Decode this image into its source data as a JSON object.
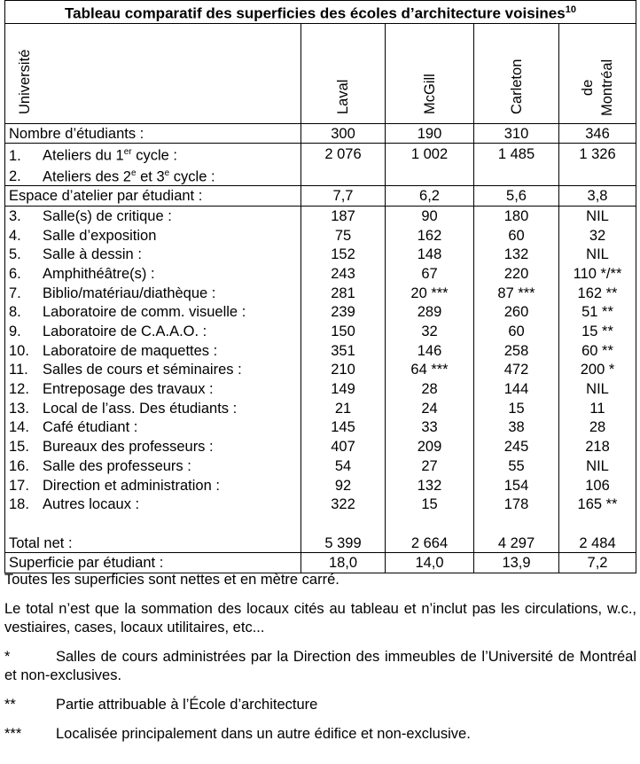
{
  "title": "Tableau comparatif des superficies des écoles d’architecture voisines",
  "title_footnote": "10",
  "header": {
    "label": "Université",
    "columns": [
      "Laval",
      "McGill",
      "Carleton",
      "de Montréal"
    ],
    "col4_line1": "de",
    "col4_line2": "Montréal"
  },
  "students": {
    "label": "Nombre d’étudiants :",
    "values": [
      "300",
      "190",
      "310",
      "346"
    ]
  },
  "ateliers": {
    "row1": {
      "num": "1.",
      "pre": "Ateliers du 1",
      "sup": "er",
      "post": " cycle :"
    },
    "row2": {
      "num": "2.",
      "pre": "Ateliers des 2",
      "sup1": "e",
      "mid": " et 3",
      "sup2": "e",
      "post": " cycle :"
    },
    "values": [
      "2 076",
      "1 002",
      "1 485",
      "1 326"
    ]
  },
  "espace": {
    "label": "Espace d’atelier par étudiant :",
    "values": [
      "7,7",
      "6,2",
      "5,6",
      "3,8"
    ]
  },
  "rows": [
    {
      "num": "3.",
      "label": "Salle(s) de critique :",
      "values": [
        "187",
        "90",
        "180",
        "NIL"
      ]
    },
    {
      "num": "4.",
      "label": "Salle d’exposition",
      "values": [
        "75",
        "162",
        "60",
        "32"
      ]
    },
    {
      "num": "5.",
      "label": "Salle à dessin :",
      "values": [
        "152",
        "148",
        "132",
        "NIL"
      ]
    },
    {
      "num": "6.",
      "label": "Amphithéâtre(s) :",
      "values": [
        "243",
        "67",
        "220",
        "110 */**"
      ]
    },
    {
      "num": "7.",
      "label": "Biblio/matériau/diathèque :",
      "values": [
        "281",
        "20 ***",
        "87 ***",
        "162 **"
      ]
    },
    {
      "num": "8.",
      "label": "Laboratoire de comm. visuelle :",
      "values": [
        "239",
        "289",
        "260",
        "51 **"
      ]
    },
    {
      "num": "9.",
      "label": "Laboratoire de C.A.A.O. :",
      "values": [
        "150",
        "32",
        "60",
        "15 **"
      ]
    },
    {
      "num": "10.",
      "label": "Laboratoire de maquettes :",
      "values": [
        "351",
        "146",
        "258",
        "60 **"
      ]
    },
    {
      "num": "11.",
      "label": "Salles de cours et séminaires :",
      "values": [
        "210",
        "64 ***",
        "472",
        "200 *"
      ]
    },
    {
      "num": "12.",
      "label": "Entreposage des travaux :",
      "values": [
        "149",
        "28",
        "144",
        "NIL"
      ]
    },
    {
      "num": "13.",
      "label": "Local de l’ass. Des étudiants :",
      "values": [
        "21",
        "24",
        "15",
        "11"
      ]
    },
    {
      "num": "14.",
      "label": "Café étudiant :",
      "values": [
        "145",
        "33",
        "38",
        "28"
      ]
    },
    {
      "num": "15.",
      "label": "Bureaux des professeurs :",
      "values": [
        "407",
        "209",
        "245",
        "218"
      ]
    },
    {
      "num": "16.",
      "label": "Salle des professeurs :",
      "values": [
        "54",
        "27",
        "55",
        "NIL"
      ]
    },
    {
      "num": "17.",
      "label": "Direction et administration :",
      "values": [
        "92",
        "132",
        "154",
        "106"
      ]
    },
    {
      "num": "18.",
      "label": "Autres locaux :",
      "values": [
        "322",
        "15",
        "178",
        "165 **"
      ]
    }
  ],
  "total": {
    "label": "Total net :",
    "values": [
      "5 399",
      "2 664",
      "4 297",
      "2 484"
    ]
  },
  "per_student": {
    "label": "Superficie par étudiant :",
    "values": [
      "18,0",
      "14,0",
      "13,9",
      "7,2"
    ]
  },
  "notes": {
    "n1": "Toutes les superficies sont nettes et en mètre carré.",
    "n2": "Le total n’est que la sommation des locaux cités au tableau et n’inclut pas les circulations, w.c., vestiaires, cases, locaux utilitaires, etc...",
    "f1_mark": "*",
    "f1": "Salles de cours administrées par la Direction des immeubles de l’Université de Montréal et non-exclusives.",
    "f2_mark": "**",
    "f2": "Partie attribuable à l’École d’architecture",
    "f3_mark": "***",
    "f3": "Localisée principalement dans un autre édifice et non-exclusive."
  }
}
